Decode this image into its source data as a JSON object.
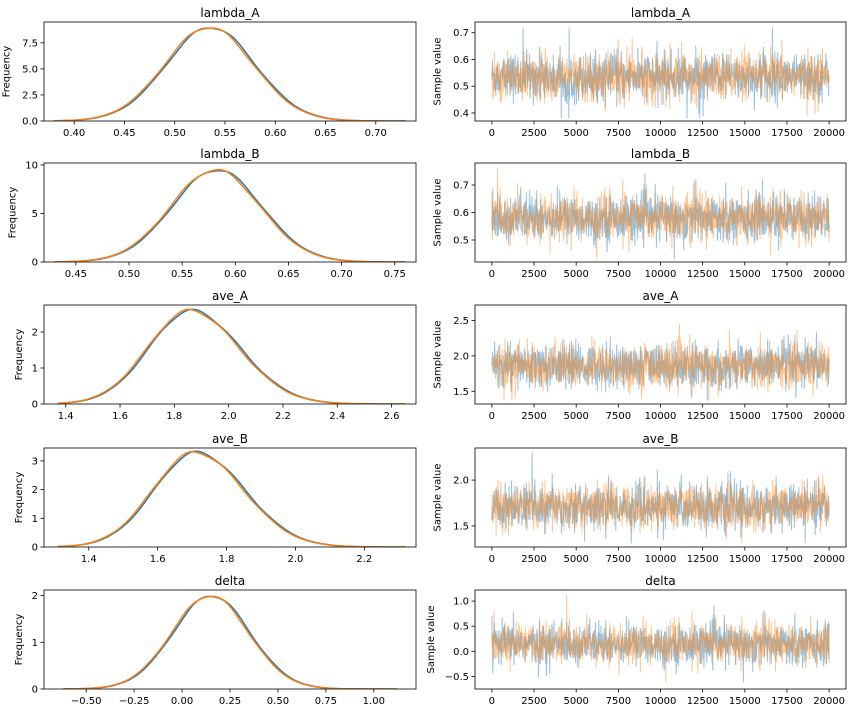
{
  "chart_data": [
    {
      "type": "line",
      "panel": "kde",
      "title": "lambda_A",
      "xlabel": "",
      "ylabel": "Frequency",
      "xlim": [
        0.37,
        0.74
      ],
      "ylim": [
        0,
        9.5
      ],
      "xticks": [
        0.4,
        0.45,
        0.5,
        0.55,
        0.6,
        0.65,
        0.7
      ],
      "yticks": [
        0.0,
        2.5,
        5.0,
        7.5
      ],
      "tick_labels_x": [
        "0.40",
        "0.45",
        "0.50",
        "0.55",
        "0.60",
        "0.65",
        "0.70"
      ],
      "tick_labels_y": [
        "0.0",
        "2.5",
        "5.0",
        "7.5"
      ],
      "curve": {
        "mean": 0.535,
        "sd": 0.044,
        "peak": 9.0,
        "min": 0.38,
        "max": 0.73
      },
      "series": [
        {
          "color": "#1f77b4"
        },
        {
          "color": "#ff7f0e"
        }
      ]
    },
    {
      "type": "line",
      "panel": "trace",
      "title": "lambda_A",
      "xlabel": "",
      "ylabel": "Sample value",
      "xlim": [
        -1000,
        21000
      ],
      "ylim": [
        0.37,
        0.74
      ],
      "xticks": [
        0,
        2500,
        5000,
        7500,
        10000,
        12500,
        15000,
        17500,
        20000
      ],
      "yticks": [
        0.4,
        0.5,
        0.6,
        0.7
      ],
      "tick_labels_x": [
        "0",
        "2500",
        "5000",
        "7500",
        "10000",
        "12500",
        "15000",
        "17500",
        "20000"
      ],
      "tick_labels_y": [
        "0.4",
        "0.5",
        "0.6",
        "0.7"
      ],
      "trace": {
        "n": 20000,
        "mean": 0.535,
        "sd": 0.044,
        "min": 0.38,
        "max": 0.72
      },
      "series": [
        {
          "color": "#1f77b4"
        },
        {
          "color": "#ff7f0e"
        }
      ]
    },
    {
      "type": "line",
      "panel": "kde",
      "title": "lambda_B",
      "xlabel": "",
      "ylabel": "Frequency",
      "xlim": [
        0.42,
        0.77
      ],
      "ylim": [
        0,
        10.2
      ],
      "xticks": [
        0.45,
        0.5,
        0.55,
        0.6,
        0.65,
        0.7,
        0.75
      ],
      "yticks": [
        0,
        5,
        10
      ],
      "tick_labels_x": [
        "0.45",
        "0.50",
        "0.55",
        "0.60",
        "0.65",
        "0.70",
        "0.75"
      ],
      "tick_labels_y": [
        "0",
        "5",
        "10"
      ],
      "curve": {
        "mean": 0.582,
        "sd": 0.042,
        "peak": 9.5,
        "min": 0.43,
        "max": 0.76
      },
      "series": [
        {
          "color": "#1f77b4"
        },
        {
          "color": "#ff7f0e"
        }
      ]
    },
    {
      "type": "line",
      "panel": "trace",
      "title": "lambda_B",
      "xlabel": "",
      "ylabel": "Sample value",
      "xlim": [
        -1000,
        21000
      ],
      "ylim": [
        0.42,
        0.78
      ],
      "xticks": [
        0,
        2500,
        5000,
        7500,
        10000,
        12500,
        15000,
        17500,
        20000
      ],
      "yticks": [
        0.5,
        0.6,
        0.7
      ],
      "tick_labels_x": [
        "0",
        "2500",
        "5000",
        "7500",
        "10000",
        "12500",
        "15000",
        "17500",
        "20000"
      ],
      "tick_labels_y": [
        "0.5",
        "0.6",
        "0.7"
      ],
      "trace": {
        "n": 20000,
        "mean": 0.582,
        "sd": 0.042,
        "min": 0.43,
        "max": 0.76
      },
      "series": [
        {
          "color": "#1f77b4"
        },
        {
          "color": "#ff7f0e"
        }
      ]
    },
    {
      "type": "line",
      "panel": "kde",
      "title": "ave_A",
      "xlabel": "",
      "ylabel": "Frequency",
      "xlim": [
        1.32,
        2.69
      ],
      "ylim": [
        0,
        2.75
      ],
      "xticks": [
        1.4,
        1.6,
        1.8,
        2.0,
        2.2,
        2.4,
        2.6
      ],
      "yticks": [
        0,
        1,
        2
      ],
      "tick_labels_x": [
        "1.4",
        "1.6",
        "1.8",
        "2.0",
        "2.2",
        "2.4",
        "2.6"
      ],
      "tick_labels_y": [
        "0",
        "1",
        "2"
      ],
      "curve": {
        "mean": 1.86,
        "sd": 0.155,
        "peak": 2.6,
        "skew": 1.15,
        "min": 1.37,
        "max": 2.65
      },
      "series": [
        {
          "color": "#1f77b4"
        },
        {
          "color": "#ff7f0e"
        }
      ]
    },
    {
      "type": "line",
      "panel": "trace",
      "title": "ave_A",
      "xlabel": "",
      "ylabel": "Sample value",
      "xlim": [
        -1000,
        21000
      ],
      "ylim": [
        1.32,
        2.72
      ],
      "xticks": [
        0,
        2500,
        5000,
        7500,
        10000,
        12500,
        15000,
        17500,
        20000
      ],
      "yticks": [
        1.5,
        2.0,
        2.5
      ],
      "tick_labels_x": [
        "0",
        "2500",
        "5000",
        "7500",
        "10000",
        "12500",
        "15000",
        "17500",
        "20000"
      ],
      "tick_labels_y": [
        "1.5",
        "2.0",
        "2.5"
      ],
      "trace": {
        "n": 20000,
        "mean": 1.86,
        "sd": 0.155,
        "min": 1.37,
        "max": 2.65
      },
      "series": [
        {
          "color": "#1f77b4"
        },
        {
          "color": "#ff7f0e"
        }
      ]
    },
    {
      "type": "line",
      "panel": "kde",
      "title": "ave_B",
      "xlabel": "",
      "ylabel": "Frequency",
      "xlim": [
        1.27,
        2.35
      ],
      "ylim": [
        0,
        3.45
      ],
      "xticks": [
        1.4,
        1.6,
        1.8,
        2.0,
        2.2
      ],
      "yticks": [
        0,
        1,
        2,
        3
      ],
      "tick_labels_x": [
        "1.4",
        "1.6",
        "1.8",
        "2.0",
        "2.2"
      ],
      "tick_labels_y": [
        "0",
        "1",
        "2",
        "3"
      ],
      "curve": {
        "mean": 1.71,
        "sd": 0.122,
        "peak": 3.3,
        "skew": 1.15,
        "min": 1.31,
        "max": 2.32
      },
      "series": [
        {
          "color": "#1f77b4"
        },
        {
          "color": "#ff7f0e"
        }
      ]
    },
    {
      "type": "line",
      "panel": "trace",
      "title": "ave_B",
      "xlabel": "",
      "ylabel": "Sample value",
      "xlim": [
        -1000,
        21000
      ],
      "ylim": [
        1.27,
        2.35
      ],
      "xticks": [
        0,
        2500,
        5000,
        7500,
        10000,
        12500,
        15000,
        17500,
        20000
      ],
      "yticks": [
        1.5,
        2.0
      ],
      "tick_labels_x": [
        "0",
        "2500",
        "5000",
        "7500",
        "10000",
        "12500",
        "15000",
        "17500",
        "20000"
      ],
      "tick_labels_y": [
        "1.5",
        "2.0"
      ],
      "trace": {
        "n": 20000,
        "mean": 1.71,
        "sd": 0.122,
        "min": 1.31,
        "max": 2.32
      },
      "series": [
        {
          "color": "#1f77b4"
        },
        {
          "color": "#ff7f0e"
        }
      ]
    },
    {
      "type": "line",
      "panel": "kde",
      "title": "delta",
      "xlabel": "",
      "ylabel": "Frequency",
      "xlim": [
        -0.72,
        1.22
      ],
      "ylim": [
        0,
        2.12
      ],
      "xticks": [
        -0.5,
        -0.25,
        0.0,
        0.25,
        0.5,
        0.75,
        1.0
      ],
      "yticks": [
        0,
        1,
        2
      ],
      "tick_labels_x": [
        "−0.50",
        "−0.25",
        "0.00",
        "0.25",
        "0.50",
        "0.75",
        "1.00"
      ],
      "tick_labels_y": [
        "0",
        "1",
        "2"
      ],
      "curve": {
        "mean": 0.15,
        "sd": 0.2,
        "peak": 2.0,
        "min": -0.62,
        "max": 1.12
      },
      "series": [
        {
          "color": "#1f77b4"
        },
        {
          "color": "#ff7f0e"
        }
      ]
    },
    {
      "type": "line",
      "panel": "trace",
      "title": "delta",
      "xlabel": "",
      "ylabel": "Sample value",
      "xlim": [
        -1000,
        21000
      ],
      "ylim": [
        -0.75,
        1.22
      ],
      "xticks": [
        0,
        2500,
        5000,
        7500,
        10000,
        12500,
        15000,
        17500,
        20000
      ],
      "yticks": [
        -0.5,
        0.0,
        0.5,
        1.0
      ],
      "tick_labels_x": [
        "0",
        "2500",
        "5000",
        "7500",
        "10000",
        "12500",
        "15000",
        "17500",
        "20000"
      ],
      "tick_labels_y": [
        "−0.5",
        "0.0",
        "0.5",
        "1.0"
      ],
      "trace": {
        "n": 20000,
        "mean": 0.15,
        "sd": 0.2,
        "min": -0.62,
        "max": 1.12
      },
      "series": [
        {
          "color": "#1f77b4"
        },
        {
          "color": "#ff7f0e"
        }
      ]
    }
  ]
}
